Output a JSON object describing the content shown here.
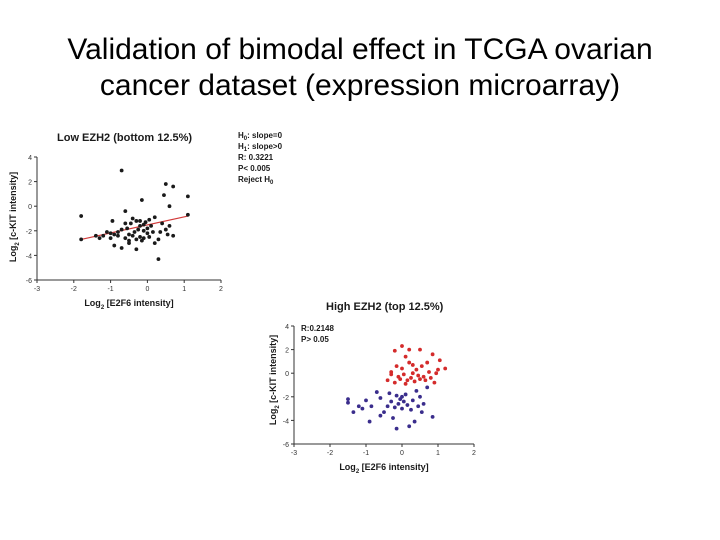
{
  "slide": {
    "title_line1": "Validation of bimodal effect in TCGA ovarian",
    "title_line2": "cancer dataset (expression microarray)"
  },
  "chart_data": [
    {
      "type": "scatter",
      "title": "Low EZH2 (bottom 12.5%)",
      "xlabel_parts": [
        "Log",
        "2",
        " [E2F6 intensity]"
      ],
      "ylabel_parts": [
        "Log",
        "2",
        " [c-KIT intensity]"
      ],
      "xlim": [
        -3,
        2
      ],
      "ylim": [
        -6,
        4
      ],
      "xticks": [
        -3,
        -2,
        -1,
        0,
        1,
        2
      ],
      "yticks": [
        4,
        2,
        0,
        -2,
        -4,
        -6
      ],
      "grid": false,
      "annotations": [
        {
          "parts": [
            "H",
            "0",
            ": slope=0"
          ]
        },
        {
          "parts": [
            "H",
            "1",
            ": slope>0"
          ]
        },
        {
          "parts": [
            "R: 0.3221"
          ]
        },
        {
          "parts": [
            "P< 0.005"
          ]
        },
        {
          "parts": [
            "Reject H",
            "0",
            ""
          ]
        }
      ],
      "colors": {
        "points": "#1a1a1a",
        "fit_line": "#d23a3a"
      },
      "fit_line": {
        "x": [
          -1.8,
          1.1
        ],
        "y": [
          -2.7,
          -0.8
        ]
      },
      "series": [
        {
          "color": "#1a1a1a",
          "points": [
            [
              -1.8,
              -0.8
            ],
            [
              -1.8,
              -2.7
            ],
            [
              -1.4,
              -2.4
            ],
            [
              -1.3,
              -2.6
            ],
            [
              -1.2,
              -2.4
            ],
            [
              -1.1,
              -2.1
            ],
            [
              -1.0,
              -2.2
            ],
            [
              -1.0,
              -2.6
            ],
            [
              -0.9,
              -2.3
            ],
            [
              -0.9,
              -3.2
            ],
            [
              -0.8,
              -2.1
            ],
            [
              -0.8,
              -2.4
            ],
            [
              -0.7,
              -1.9
            ],
            [
              -0.7,
              -3.4
            ],
            [
              -0.7,
              2.9
            ],
            [
              -0.6,
              -2.6
            ],
            [
              -0.6,
              -1.4
            ],
            [
              -0.6,
              -0.4
            ],
            [
              -0.55,
              -1.8
            ],
            [
              -0.5,
              -2.3
            ],
            [
              -0.5,
              -3.0
            ],
            [
              -0.5,
              -2.8
            ],
            [
              -0.45,
              -1.4
            ],
            [
              -0.4,
              -2.4
            ],
            [
              -0.4,
              -1.0
            ],
            [
              -0.35,
              -2.1
            ],
            [
              -0.3,
              -2.7
            ],
            [
              -0.3,
              -1.2
            ],
            [
              -0.3,
              -3.5
            ],
            [
              -0.25,
              -1.9
            ],
            [
              -0.2,
              -2.5
            ],
            [
              -0.2,
              -1.6
            ],
            [
              -0.2,
              -1.2
            ],
            [
              -0.15,
              -2.8
            ],
            [
              -0.1,
              -1.5
            ],
            [
              -0.1,
              -2.0
            ],
            [
              -0.1,
              -2.6
            ],
            [
              -0.05,
              -1.3
            ],
            [
              0.0,
              -1.8
            ],
            [
              0.0,
              -2.2
            ],
            [
              0.05,
              -2.5
            ],
            [
              0.05,
              -1.1
            ],
            [
              0.1,
              -1.6
            ],
            [
              0.15,
              -2.1
            ],
            [
              0.2,
              -3.0
            ],
            [
              0.2,
              -0.9
            ],
            [
              0.3,
              -2.7
            ],
            [
              0.35,
              -2.1
            ],
            [
              0.4,
              -1.4
            ],
            [
              0.45,
              0.9
            ],
            [
              0.5,
              -1.9
            ],
            [
              0.55,
              -2.3
            ],
            [
              0.6,
              0.0
            ],
            [
              0.6,
              -1.6
            ],
            [
              0.7,
              -2.4
            ],
            [
              0.7,
              1.6
            ],
            [
              0.5,
              1.8
            ],
            [
              0.3,
              -4.3
            ],
            [
              -0.95,
              -1.2
            ],
            [
              1.1,
              0.8
            ],
            [
              1.1,
              -0.7
            ],
            [
              -0.15,
              0.5
            ]
          ]
        }
      ]
    },
    {
      "type": "scatter",
      "title": "High EZH2 (top 12.5%)",
      "xlabel_parts": [
        "Log",
        "2",
        " [E2F6 intensity]"
      ],
      "ylabel_parts": [
        "Log",
        "2",
        " [c-KIT intensity]"
      ],
      "xlim": [
        -3,
        2
      ],
      "ylim": [
        -6,
        4
      ],
      "xticks": [
        -3,
        -2,
        -1,
        0,
        1,
        2
      ],
      "yticks": [
        4,
        2,
        0,
        -2,
        -4,
        -6
      ],
      "grid": false,
      "annotations": [
        {
          "parts": [
            "R:0.2148"
          ]
        },
        {
          "parts": [
            "P> 0.05"
          ]
        }
      ],
      "colors": {
        "high": "#d42b2b",
        "low": "#3a2d8c"
      },
      "series": [
        {
          "color": "#d42b2b",
          "points": [
            [
              -0.4,
              -0.6
            ],
            [
              -0.3,
              -0.1
            ],
            [
              -0.3,
              0.1
            ],
            [
              -0.2,
              -0.8
            ],
            [
              -0.15,
              0.6
            ],
            [
              -0.1,
              -0.3
            ],
            [
              -0.05,
              -0.5
            ],
            [
              0.0,
              0.4
            ],
            [
              0.0,
              2.3
            ],
            [
              0.05,
              -0.1
            ],
            [
              0.1,
              1.4
            ],
            [
              0.1,
              -0.9
            ],
            [
              0.15,
              -0.6
            ],
            [
              0.2,
              0.9
            ],
            [
              0.25,
              -0.4
            ],
            [
              0.3,
              0.0
            ],
            [
              0.35,
              -0.7
            ],
            [
              0.4,
              0.3
            ],
            [
              0.45,
              -0.2
            ],
            [
              0.5,
              2.0
            ],
            [
              0.5,
              -0.5
            ],
            [
              0.55,
              0.6
            ],
            [
              0.6,
              -0.3
            ],
            [
              0.65,
              -0.6
            ],
            [
              0.7,
              0.9
            ],
            [
              0.75,
              0.1
            ],
            [
              0.8,
              -0.4
            ],
            [
              0.85,
              1.6
            ],
            [
              0.9,
              -0.8
            ],
            [
              0.95,
              0.0
            ],
            [
              1.0,
              0.3
            ],
            [
              1.05,
              1.1
            ],
            [
              1.2,
              0.4
            ],
            [
              0.2,
              2.0
            ],
            [
              -0.2,
              1.9
            ],
            [
              0.3,
              0.7
            ]
          ]
        },
        {
          "color": "#3a2d8c",
          "points": [
            [
              -1.5,
              -2.5
            ],
            [
              -1.5,
              -2.2
            ],
            [
              -1.35,
              -3.3
            ],
            [
              -1.2,
              -2.8
            ],
            [
              -1.0,
              -2.3
            ],
            [
              -0.9,
              -4.1
            ],
            [
              -0.85,
              -2.8
            ],
            [
              -0.7,
              -1.6
            ],
            [
              -0.6,
              -2.1
            ],
            [
              -0.5,
              -3.3
            ],
            [
              -0.4,
              -2.8
            ],
            [
              -0.35,
              -1.7
            ],
            [
              -0.3,
              -2.4
            ],
            [
              -0.25,
              -3.8
            ],
            [
              -0.2,
              -2.9
            ],
            [
              -0.15,
              -1.9
            ],
            [
              -0.1,
              -2.6
            ],
            [
              -0.05,
              -2.2
            ],
            [
              0.0,
              -3.0
            ],
            [
              0.05,
              -2.4
            ],
            [
              0.1,
              -1.8
            ],
            [
              0.15,
              -2.7
            ],
            [
              0.2,
              -4.5
            ],
            [
              0.25,
              -3.1
            ],
            [
              0.3,
              -2.3
            ],
            [
              0.35,
              -4.1
            ],
            [
              0.4,
              -1.5
            ],
            [
              0.45,
              -2.8
            ],
            [
              0.5,
              -2.0
            ],
            [
              0.55,
              -3.3
            ],
            [
              0.6,
              -2.6
            ],
            [
              0.7,
              -1.2
            ],
            [
              -1.1,
              -3.0
            ],
            [
              -0.15,
              -4.7
            ],
            [
              0.0,
              -2.0
            ],
            [
              0.85,
              -3.7
            ],
            [
              -0.6,
              -3.6
            ]
          ]
        }
      ]
    }
  ]
}
